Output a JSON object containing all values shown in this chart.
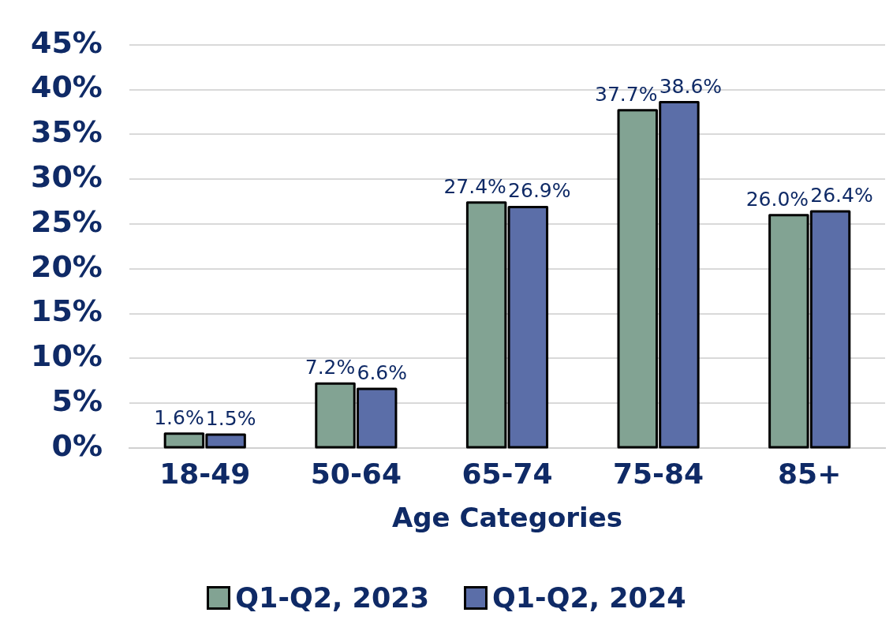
{
  "chart_data": {
    "type": "bar",
    "xlabel": "Age Categories",
    "categories": [
      "18-49",
      "50-64",
      "65-74",
      "75-84",
      "85+"
    ],
    "series": [
      {
        "name": "Q1-Q2, 2023",
        "color": "#82a393",
        "values": [
          1.6,
          7.2,
          27.4,
          37.7,
          26.0
        ]
      },
      {
        "name": "Q1-Q2, 2024",
        "color": "#5b6ea8",
        "values": [
          1.5,
          6.6,
          26.9,
          38.6,
          26.4
        ]
      }
    ],
    "value_labels": [
      [
        "1.6%",
        "7.2%",
        "27.4%",
        "37.7%",
        "26.0%"
      ],
      [
        "1.5%",
        "6.6%",
        "26.9%",
        "38.6%",
        "26.4%"
      ]
    ],
    "ylim": [
      0,
      45
    ],
    "yticks": [
      {
        "value": 0,
        "label": "0%"
      },
      {
        "value": 5,
        "label": "5%"
      },
      {
        "value": 10,
        "label": "10%"
      },
      {
        "value": 15,
        "label": "15%"
      },
      {
        "value": 20,
        "label": "20%"
      },
      {
        "value": 25,
        "label": "25%"
      },
      {
        "value": 30,
        "label": "30%"
      },
      {
        "value": 35,
        "label": "35%"
      },
      {
        "value": 40,
        "label": "40%"
      },
      {
        "value": 45,
        "label": "45%"
      }
    ],
    "grid": "y",
    "legend": "bottom"
  }
}
